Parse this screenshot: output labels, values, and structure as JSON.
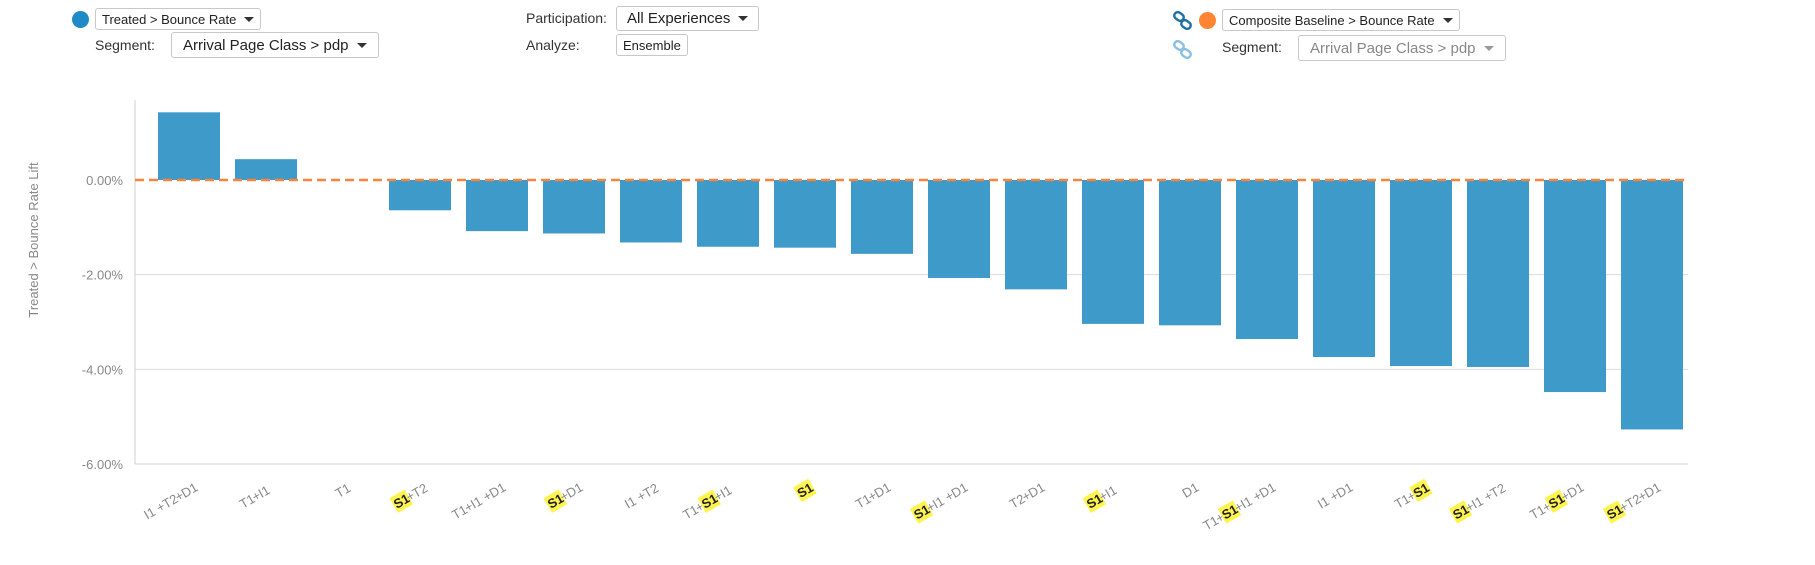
{
  "controls": {
    "left": {
      "series_dot_color": "#1f8ac6",
      "metric_label": "Treated > Bounce Rate",
      "segment_label": "Segment:",
      "segment_value": "Arrival Page Class > pdp"
    },
    "middle": {
      "participation_label": "Participation:",
      "participation_value": "All Experiences",
      "analyze_label": "Analyze:",
      "analyze_value": "Ensemble"
    },
    "right": {
      "link_icon": "link-icon",
      "unlink_icon": "link-faded-icon",
      "baseline_dot_color": "#ff8533",
      "metric_label": "Composite Baseline > Bounce Rate",
      "segment_label": "Segment:",
      "segment_value": "Arrival Page Class > pdp"
    }
  },
  "chart_data": {
    "type": "bar",
    "ylabel": "Treated > Bounce Rate Lift",
    "xlabel": "",
    "ylim": [
      -6,
      1.6
    ],
    "yticks": [
      0,
      -2,
      -4,
      -6
    ],
    "ytick_labels": [
      "0.00%",
      "-2.00%",
      "-4.00%",
      "-6.00%"
    ],
    "grid": true,
    "bar_color": "#3d9ac9",
    "baseline_color": "#f5853f",
    "highlight_token": "S1",
    "highlight_color": "#fff44f",
    "categories": [
      "I1+T2+D1",
      "T1+I1",
      "T1",
      "S1+T2",
      "T1+I1+D1",
      "S1+D1",
      "I1+T2",
      "T1+S1+I1",
      "S1",
      "T1+D1",
      "S1+I1+D1",
      "T2+D1",
      "S1+I1",
      "D1",
      "T1+S1+I1+D1",
      "I1+D1",
      "T1+S1",
      "S1+I1+T2",
      "T1+S1+D1",
      "S1+T2+D1"
    ],
    "values": [
      1.43,
      0.44,
      0,
      -0.64,
      -1.08,
      -1.13,
      -1.32,
      -1.41,
      -1.43,
      -1.56,
      -2.07,
      -2.31,
      -3.04,
      -3.07,
      -3.36,
      -3.74,
      -3.93,
      -3.95,
      -4.48,
      -5.27
    ]
  }
}
